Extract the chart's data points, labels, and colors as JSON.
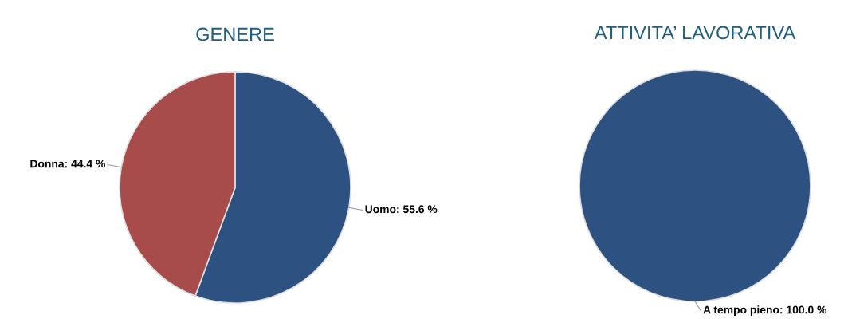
{
  "chart_data": [
    {
      "type": "pie",
      "title": "GENERE",
      "categories": [
        "Uomo",
        "Donna"
      ],
      "values": [
        55.6,
        44.4
      ],
      "colors": [
        "#2d5282",
        "#a84b4b"
      ],
      "value_labels": [
        "55.6 %",
        "44.4 %"
      ]
    },
    {
      "type": "pie",
      "title": "ATTIVITA’ LAVORATIVA",
      "categories": [
        "A tempo pieno"
      ],
      "values": [
        100.0
      ],
      "colors": [
        "#2d5282"
      ],
      "value_labels": [
        "100.0 %"
      ]
    }
  ]
}
